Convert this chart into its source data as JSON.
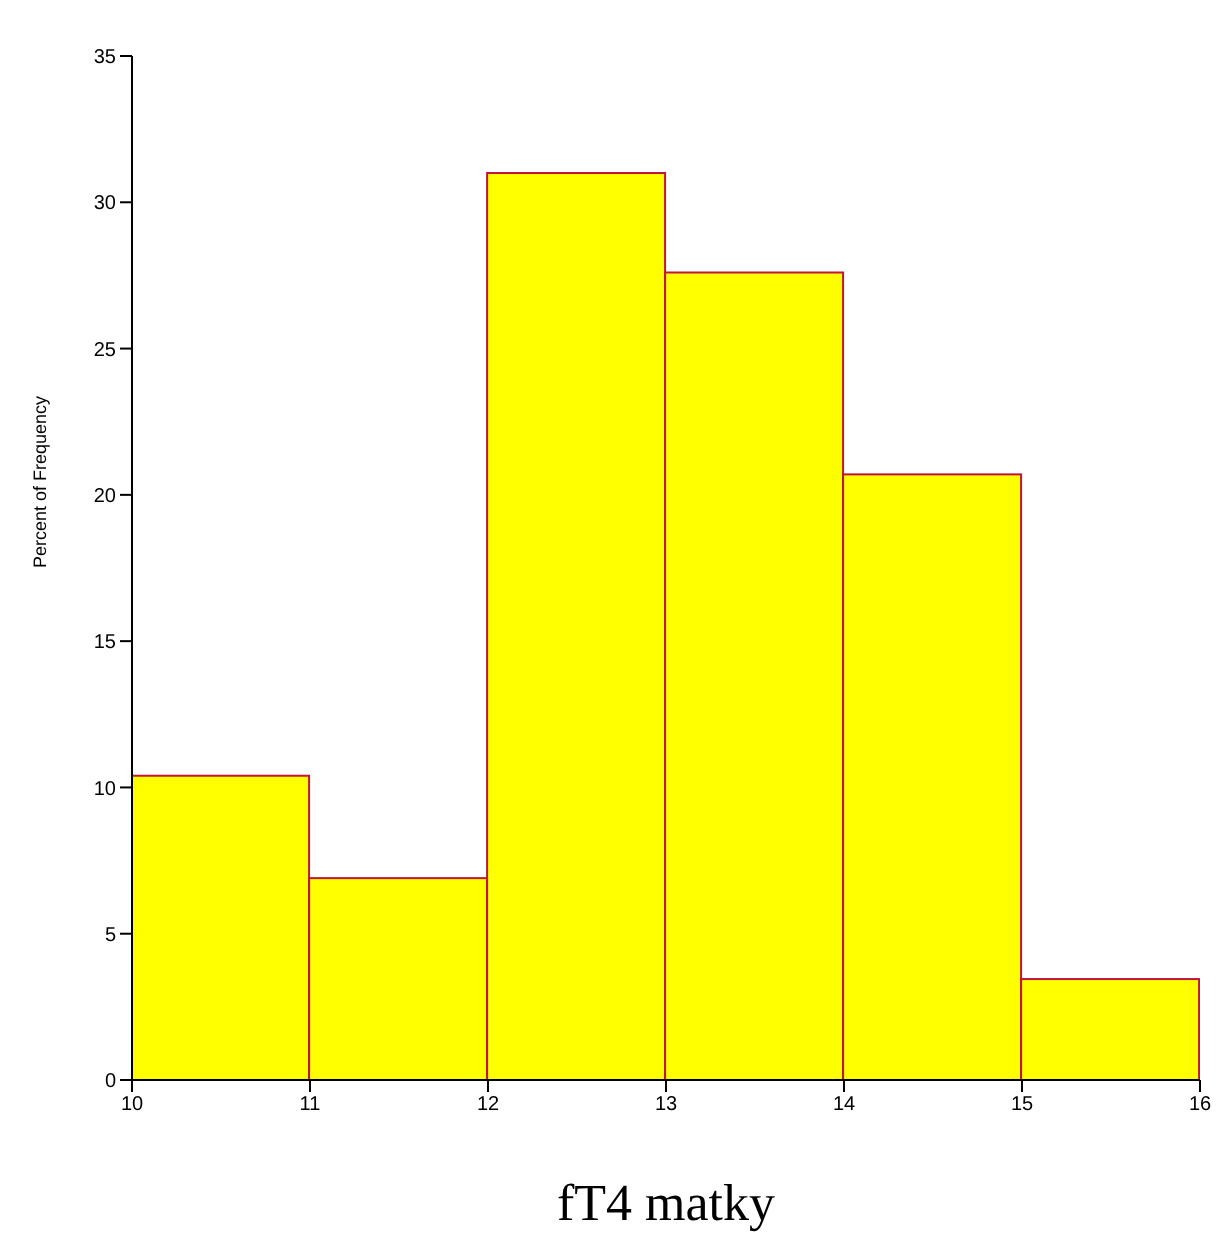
{
  "chart_data": {
    "type": "histogram",
    "xlabel": "fT4  matky",
    "ylabel": "Percent of Frequency",
    "bins": [
      10,
      11,
      12,
      13,
      14,
      15,
      16
    ],
    "values": [
      10.4,
      6.9,
      31,
      27.6,
      20.7,
      3.45
    ],
    "color": "#ffff00",
    "xlim": [
      10,
      16
    ],
    "xticks": [
      10,
      11,
      12,
      13,
      14,
      15,
      16
    ],
    "ylim": [
      0,
      35
    ],
    "yticks": [
      0,
      5,
      10,
      15,
      20,
      25,
      30,
      35
    ],
    "grid": false,
    "legend": false
  }
}
